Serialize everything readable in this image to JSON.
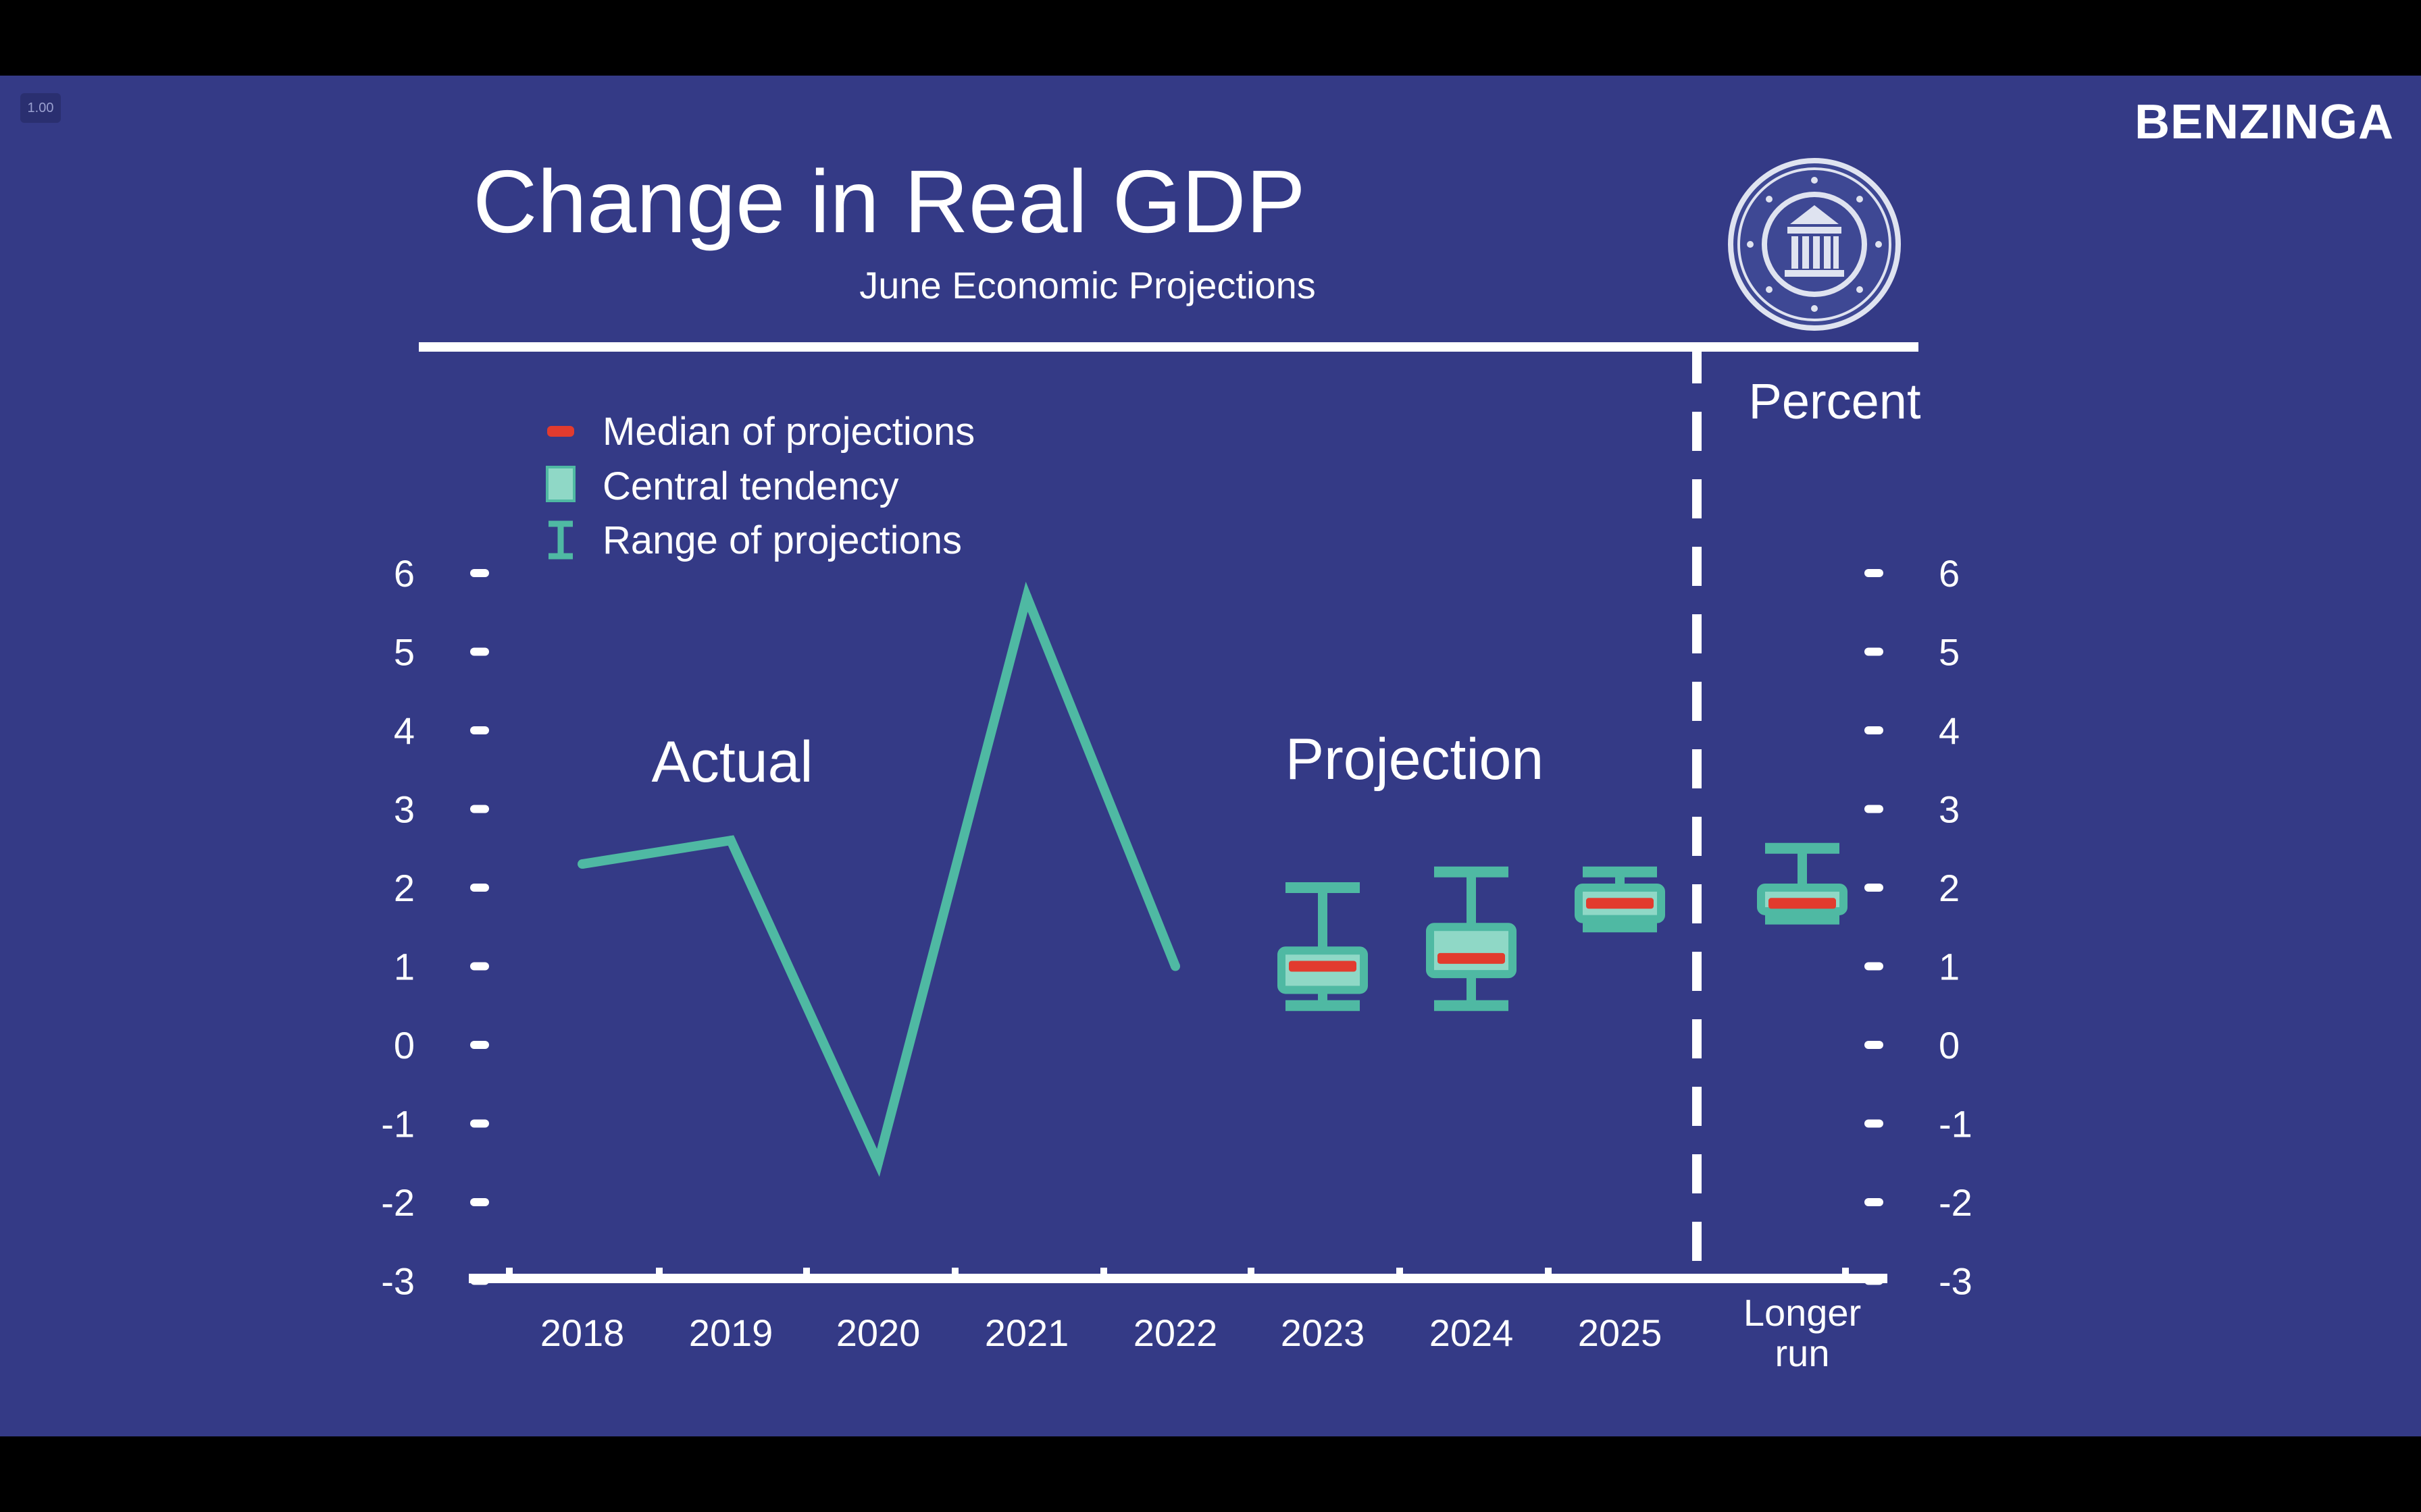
{
  "player": {
    "speed_label": "1.00"
  },
  "brand": {
    "logo_text": "BENZINGA"
  },
  "colors": {
    "background": "#343a86",
    "line": "#4fb9a3",
    "central": "#8fd8c6",
    "median": "#e23b2e",
    "axis": "#ffffff"
  },
  "seal": {
    "icon": "federal-reserve-seal-icon"
  },
  "chart_data": {
    "type": "line",
    "title": "Change in Real GDP",
    "subtitle": "June Economic Projections",
    "ylabel": "Percent",
    "ylim": [
      -3,
      6
    ],
    "yticks": [
      6,
      5,
      4,
      3,
      2,
      1,
      0,
      -1,
      -2,
      -3
    ],
    "categories": [
      "2018",
      "2019",
      "2020",
      "2021",
      "2022",
      "2023",
      "2024",
      "2025",
      "Longer run"
    ],
    "category_labels": [
      [
        "2018"
      ],
      [
        "2019"
      ],
      [
        "2020"
      ],
      [
        "2021"
      ],
      [
        "2022"
      ],
      [
        "2023"
      ],
      [
        "2024"
      ],
      [
        "2025"
      ],
      [
        "Longer",
        "run"
      ]
    ],
    "sections": {
      "actual": "Actual",
      "projection": "Projection"
    },
    "legend": {
      "placement": "top-left",
      "median": "Median of projections",
      "central": "Central tendency",
      "range": "Range of projections"
    },
    "actual": {
      "x": [
        "2018",
        "2019",
        "2020",
        "2021",
        "2022"
      ],
      "values": [
        2.3,
        2.6,
        -1.5,
        5.7,
        1.0
      ]
    },
    "projections": [
      {
        "x": "2023",
        "median": 1.0,
        "central": [
          0.7,
          1.2
        ],
        "range": [
          0.5,
          2.0
        ]
      },
      {
        "x": "2024",
        "median": 1.1,
        "central": [
          0.9,
          1.5
        ],
        "range": [
          0.5,
          2.2
        ]
      },
      {
        "x": "2025",
        "median": 1.8,
        "central": [
          1.6,
          2.0
        ],
        "range": [
          1.5,
          2.2
        ]
      },
      {
        "x": "Longer run",
        "median": 1.8,
        "central": [
          1.7,
          2.0
        ],
        "range": [
          1.6,
          2.5
        ]
      }
    ]
  }
}
